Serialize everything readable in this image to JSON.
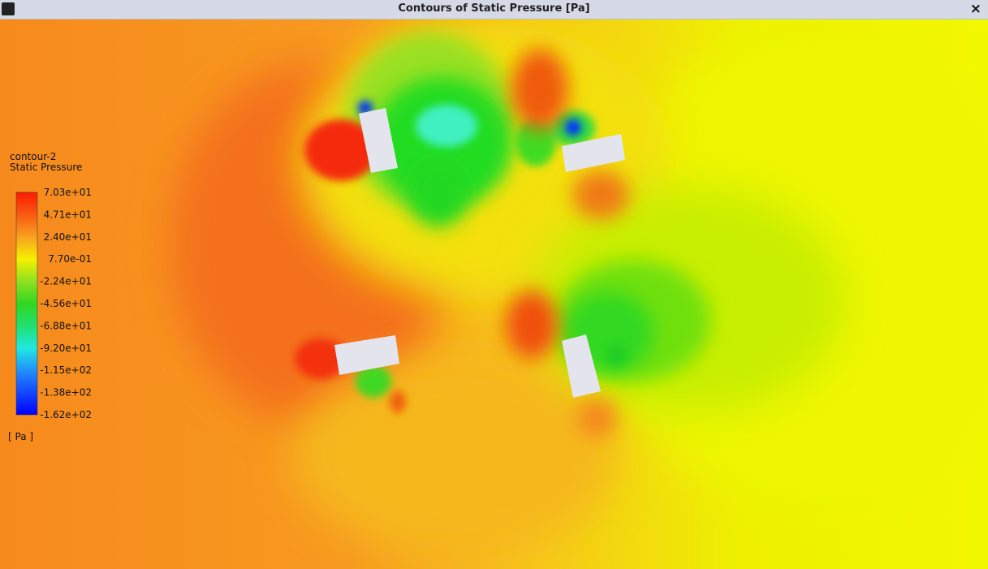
{
  "window": {
    "title": "Contours of Static Pressure [Pa]",
    "close": "×"
  },
  "legend": {
    "name": "contour-2",
    "variable": "Static Pressure",
    "labels": [
      "7.03e+01",
      "4.71e+01",
      "2.40e+01",
      "7.70e-01",
      "-2.24e+01",
      "-4.56e+01",
      "-6.88e+01",
      "-9.20e+01",
      "-1.15e+02",
      "-1.38e+02",
      "-1.62e+02"
    ],
    "unit": "[ Pa ]"
  }
}
